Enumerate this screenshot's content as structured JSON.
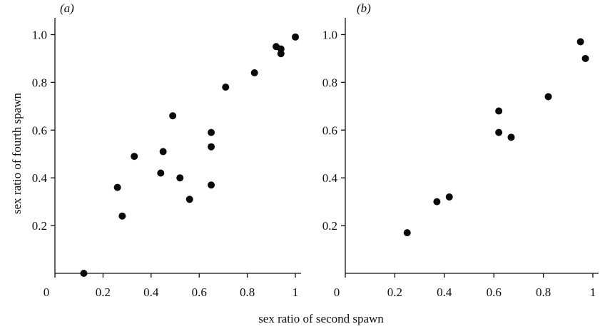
{
  "x_axis_label": "sex ratio of second spawn",
  "y_axis_label": "sex ratio of fourth spawn",
  "chart_data": [
    {
      "type": "scatter",
      "panel_label": "(a)",
      "xlim": [
        0,
        1
      ],
      "ylim": [
        0,
        1
      ],
      "x_ticks": [
        0,
        0.2,
        0.4,
        0.6,
        0.8,
        1
      ],
      "x_tick_labels": [
        "0",
        "0.2",
        "0.4",
        "0.6",
        "0.8",
        "1"
      ],
      "y_ticks": [
        0.2,
        0.4,
        0.6,
        0.8,
        1.0
      ],
      "y_tick_labels": [
        "0.2",
        "0.4",
        "0.6",
        "0.8",
        "1.0"
      ],
      "points": [
        {
          "x": 0.12,
          "y": 0.0
        },
        {
          "x": 0.26,
          "y": 0.36
        },
        {
          "x": 0.28,
          "y": 0.24
        },
        {
          "x": 0.33,
          "y": 0.49
        },
        {
          "x": 0.44,
          "y": 0.42
        },
        {
          "x": 0.45,
          "y": 0.51
        },
        {
          "x": 0.49,
          "y": 0.66
        },
        {
          "x": 0.52,
          "y": 0.4
        },
        {
          "x": 0.56,
          "y": 0.31
        },
        {
          "x": 0.65,
          "y": 0.59
        },
        {
          "x": 0.65,
          "y": 0.53
        },
        {
          "x": 0.65,
          "y": 0.37
        },
        {
          "x": 0.71,
          "y": 0.78
        },
        {
          "x": 0.83,
          "y": 0.84
        },
        {
          "x": 0.92,
          "y": 0.95
        },
        {
          "x": 0.94,
          "y": 0.94
        },
        {
          "x": 0.94,
          "y": 0.92
        },
        {
          "x": 1.0,
          "y": 0.99
        }
      ]
    },
    {
      "type": "scatter",
      "panel_label": "(b)",
      "xlim": [
        0,
        1
      ],
      "ylim": [
        0,
        1
      ],
      "x_ticks": [
        0,
        0.2,
        0.4,
        0.6,
        0.8,
        1
      ],
      "x_tick_labels": [
        "0",
        "0.2",
        "0.4",
        "0.6",
        "0.8",
        "1"
      ],
      "y_ticks": [
        0.2,
        0.4,
        0.6,
        0.8,
        1.0
      ],
      "y_tick_labels": [
        "0.2",
        "0.4",
        "0.6",
        "0.8",
        "1.0"
      ],
      "points": [
        {
          "x": 0.25,
          "y": 0.17
        },
        {
          "x": 0.37,
          "y": 0.3
        },
        {
          "x": 0.42,
          "y": 0.32
        },
        {
          "x": 0.62,
          "y": 0.68
        },
        {
          "x": 0.62,
          "y": 0.59
        },
        {
          "x": 0.67,
          "y": 0.57
        },
        {
          "x": 0.82,
          "y": 0.74
        },
        {
          "x": 0.95,
          "y": 0.97
        },
        {
          "x": 0.97,
          "y": 0.9
        }
      ]
    }
  ]
}
